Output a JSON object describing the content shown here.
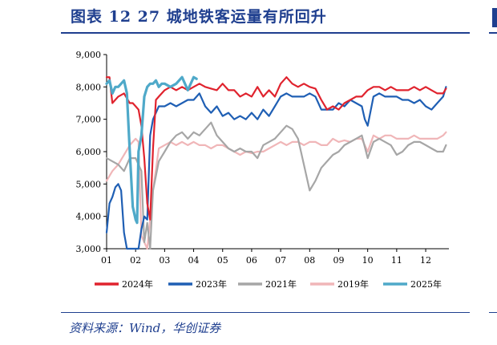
{
  "header": {
    "title": "图表 12   27 城地铁客运量有所回升"
  },
  "footer": {
    "source": "资料来源：Wind，华创证券"
  },
  "colors": {
    "accent": "#1f3f8f"
  },
  "chart_data": {
    "type": "line",
    "title": "",
    "xlabel": "",
    "ylabel": "",
    "ylim": [
      3000,
      9000
    ],
    "yticks": [
      "3,000",
      "4,000",
      "5,000",
      "6,000",
      "7,000",
      "8,000",
      "9,000"
    ],
    "ytick_values": [
      3000,
      4000,
      5000,
      6000,
      7000,
      8000,
      9000
    ],
    "xlim": [
      1,
      12.8
    ],
    "xticks": [
      "01",
      "02",
      "03",
      "04",
      "05",
      "06",
      "07",
      "08",
      "09",
      "10",
      "11",
      "12"
    ],
    "xtick_values": [
      1,
      2,
      3,
      4,
      5,
      6,
      7,
      8,
      9,
      10,
      11,
      12
    ],
    "legend_position": "bottom",
    "grid": false,
    "series": [
      {
        "name": "2024年",
        "color": "#e0232e",
        "width": 2.2,
        "x": [
          1.0,
          1.1,
          1.2,
          1.4,
          1.6,
          1.8,
          1.9,
          2.0,
          2.1,
          2.2,
          2.3,
          2.4,
          2.5,
          2.6,
          2.7,
          2.8,
          3.0,
          3.2,
          3.4,
          3.6,
          3.8,
          4.0,
          4.2,
          4.4,
          4.6,
          4.8,
          5.0,
          5.2,
          5.4,
          5.6,
          5.8,
          6.0,
          6.2,
          6.4,
          6.6,
          6.8,
          7.0,
          7.2,
          7.4,
          7.6,
          7.8,
          8.0,
          8.2,
          8.4,
          8.6,
          8.8,
          9.0,
          9.2,
          9.4,
          9.6,
          9.8,
          10.0,
          10.2,
          10.4,
          10.6,
          10.8,
          11.0,
          11.2,
          11.4,
          11.6,
          11.8,
          12.0,
          12.2,
          12.4,
          12.6,
          12.7
        ],
        "y": [
          8300,
          8300,
          7500,
          7700,
          7800,
          7500,
          7500,
          7400,
          7300,
          6800,
          5800,
          4400,
          3900,
          6100,
          7600,
          7700,
          7900,
          8000,
          7900,
          8000,
          7900,
          8000,
          8100,
          8000,
          7950,
          7900,
          8100,
          7900,
          7900,
          7700,
          7800,
          7700,
          8000,
          7700,
          7900,
          7700,
          8100,
          8300,
          8100,
          8000,
          8100,
          8000,
          7950,
          7600,
          7300,
          7400,
          7300,
          7500,
          7600,
          7700,
          7700,
          7900,
          8000,
          8000,
          7900,
          8000,
          7900,
          7900,
          7900,
          8000,
          7900,
          8000,
          7900,
          7800,
          7800,
          7950
        ]
      },
      {
        "name": "2023年",
        "color": "#1f5fb4",
        "width": 2.2,
        "x": [
          1.0,
          1.1,
          1.2,
          1.3,
          1.4,
          1.5,
          1.6,
          1.7,
          1.8,
          2.0,
          2.1,
          2.2,
          2.3,
          2.4,
          2.5,
          2.6,
          2.8,
          3.0,
          3.2,
          3.4,
          3.6,
          3.8,
          4.0,
          4.2,
          4.4,
          4.6,
          4.8,
          5.0,
          5.2,
          5.4,
          5.6,
          5.8,
          6.0,
          6.2,
          6.4,
          6.6,
          6.8,
          7.0,
          7.2,
          7.4,
          7.6,
          7.8,
          8.0,
          8.2,
          8.4,
          8.6,
          8.8,
          9.0,
          9.2,
          9.4,
          9.6,
          9.8,
          9.9,
          10.0,
          10.2,
          10.4,
          10.6,
          10.8,
          11.0,
          11.2,
          11.4,
          11.6,
          11.8,
          12.0,
          12.2,
          12.4,
          12.6,
          12.7
        ],
        "y": [
          3500,
          4400,
          4600,
          4900,
          5000,
          4800,
          3500,
          2900,
          2600,
          2700,
          2600,
          3600,
          4000,
          3900,
          6500,
          7000,
          7400,
          7400,
          7500,
          7400,
          7500,
          7600,
          7600,
          7800,
          7400,
          7200,
          7400,
          7100,
          7200,
          7000,
          7100,
          7000,
          7200,
          7000,
          7300,
          7100,
          7400,
          7700,
          7800,
          7700,
          7700,
          7700,
          7800,
          7700,
          7300,
          7300,
          7300,
          7500,
          7400,
          7600,
          7500,
          7400,
          7000,
          6800,
          7700,
          7800,
          7700,
          7700,
          7700,
          7600,
          7600,
          7500,
          7600,
          7400,
          7300,
          7500,
          7700,
          8000
        ]
      },
      {
        "name": "2021年",
        "color": "#a6a6a6",
        "width": 2.2,
        "x": [
          1.0,
          1.2,
          1.4,
          1.6,
          1.8,
          2.0,
          2.2,
          2.3,
          2.4,
          2.5,
          2.6,
          2.8,
          3.0,
          3.2,
          3.4,
          3.6,
          3.8,
          4.0,
          4.2,
          4.4,
          4.6,
          4.8,
          5.0,
          5.2,
          5.4,
          5.6,
          5.8,
          6.0,
          6.2,
          6.4,
          6.6,
          6.8,
          7.0,
          7.2,
          7.4,
          7.6,
          7.8,
          8.0,
          8.2,
          8.4,
          8.6,
          8.8,
          9.0,
          9.2,
          9.4,
          9.6,
          9.8,
          10.0,
          10.2,
          10.4,
          10.6,
          10.8,
          11.0,
          11.2,
          11.4,
          11.6,
          11.8,
          12.0,
          12.2,
          12.4,
          12.6,
          12.7
        ],
        "y": [
          5800,
          5700,
          5600,
          5400,
          5800,
          5800,
          5400,
          3200,
          3800,
          3000,
          4800,
          5700,
          6000,
          6300,
          6500,
          6600,
          6400,
          6600,
          6500,
          6700,
          6900,
          6500,
          6300,
          6100,
          6000,
          6100,
          6000,
          6000,
          5800,
          6200,
          6300,
          6400,
          6600,
          6800,
          6700,
          6400,
          5600,
          4800,
          5100,
          5500,
          5700,
          5900,
          6000,
          6200,
          6300,
          6400,
          6500,
          5800,
          6300,
          6400,
          6300,
          6200,
          5900,
          6000,
          6200,
          6300,
          6300,
          6200,
          6100,
          6000,
          6000,
          6200
        ]
      },
      {
        "name": "2019年",
        "color": "#f0b6b8",
        "width": 2.2,
        "x": [
          1.0,
          1.2,
          1.4,
          1.6,
          1.8,
          2.0,
          2.1,
          2.2,
          2.4,
          2.6,
          2.8,
          3.0,
          3.2,
          3.4,
          3.6,
          3.8,
          4.0,
          4.2,
          4.4,
          4.6,
          4.8,
          5.0,
          5.2,
          5.4,
          5.6,
          5.8,
          6.0,
          6.2,
          6.4,
          6.6,
          6.8,
          7.0,
          7.2,
          7.4,
          7.6,
          7.8,
          8.0,
          8.2,
          8.4,
          8.6,
          8.8,
          9.0,
          9.2,
          9.4,
          9.6,
          9.8,
          10.0,
          10.2,
          10.4,
          10.6,
          10.8,
          11.0,
          11.2,
          11.4,
          11.6,
          11.8,
          12.0,
          12.2,
          12.4,
          12.6,
          12.7
        ],
        "y": [
          5100,
          5400,
          5600,
          5900,
          6200,
          6400,
          6300,
          3400,
          3000,
          4800,
          6100,
          6200,
          6300,
          6200,
          6300,
          6200,
          6300,
          6200,
          6200,
          6100,
          6200,
          6200,
          6100,
          6000,
          5900,
          6000,
          5950,
          6000,
          6000,
          6100,
          6200,
          6300,
          6200,
          6300,
          6300,
          6200,
          6300,
          6300,
          6200,
          6200,
          6400,
          6300,
          6350,
          6300,
          6400,
          6400,
          6000,
          6500,
          6400,
          6500,
          6500,
          6400,
          6400,
          6400,
          6500,
          6400,
          6400,
          6400,
          6400,
          6500,
          6600
        ]
      },
      {
        "name": "2025年",
        "color": "#4fa9c9",
        "width": 3.2,
        "x": [
          1.0,
          1.1,
          1.2,
          1.3,
          1.4,
          1.5,
          1.6,
          1.7,
          1.8,
          1.9,
          2.0,
          2.05,
          2.1,
          2.2,
          2.3,
          2.4,
          2.5,
          2.6,
          2.7,
          2.8,
          2.9,
          3.0,
          3.2,
          3.4,
          3.6,
          3.8,
          4.0,
          4.1
        ],
        "y": [
          8100,
          8200,
          7800,
          8000,
          8000,
          8100,
          8200,
          7800,
          6000,
          4300,
          3900,
          3800,
          6000,
          6500,
          7700,
          8000,
          8100,
          8100,
          8200,
          8000,
          8100,
          8100,
          8000,
          8100,
          8300,
          7900,
          8300,
          8250
        ]
      }
    ]
  }
}
